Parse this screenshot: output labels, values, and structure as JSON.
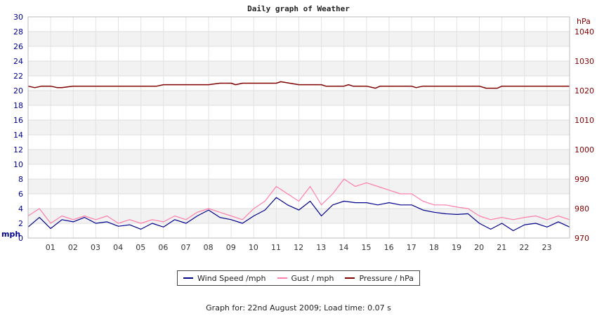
{
  "title": "Daily graph of Weather",
  "footer": "Graph for: 22nd August 2009; Load time: 0.07 s",
  "legend": [
    {
      "label": "Wind Speed /mph",
      "color": "#00008b"
    },
    {
      "label": "Gust / mph",
      "color": "#ff7fa8"
    },
    {
      "label": "Pressure / hPa",
      "color": "#800000"
    }
  ],
  "chart_data": {
    "type": "line",
    "x_label_hours": [
      "01",
      "02",
      "03",
      "04",
      "05",
      "06",
      "07",
      "08",
      "09",
      "10",
      "11",
      "12",
      "13",
      "14",
      "15",
      "16",
      "17",
      "18",
      "19",
      "20",
      "21",
      "22",
      "23"
    ],
    "xlim": [
      0,
      24
    ],
    "left_axis": {
      "unit": "mph",
      "ylim": [
        0,
        30
      ],
      "ticks": [
        0,
        2,
        4,
        6,
        8,
        10,
        12,
        14,
        16,
        18,
        20,
        22,
        24,
        26,
        28,
        30
      ],
      "color": "#00008b"
    },
    "right_axis": {
      "unit": "hPa",
      "ylim": [
        970,
        1045
      ],
      "ticks": [
        970,
        980,
        990,
        1000,
        1010,
        1020,
        1030,
        1040
      ],
      "color": "#800000"
    },
    "grid": "horizontal-bands",
    "legend_position": "bottom",
    "series": [
      {
        "name": "Wind Speed /mph",
        "axis": "left",
        "color": "#00008b",
        "x": [
          0,
          0.5,
          1,
          1.5,
          2,
          2.5,
          3,
          3.5,
          4,
          4.5,
          5,
          5.5,
          6,
          6.5,
          7,
          7.5,
          8,
          8.5,
          9,
          9.5,
          10,
          10.5,
          11,
          11.5,
          12,
          12.5,
          13,
          13.5,
          14,
          14.5,
          15,
          15.5,
          16,
          16.5,
          17,
          17.5,
          18,
          18.5,
          19,
          19.5,
          20,
          20.5,
          21,
          21.5,
          22,
          22.5,
          23,
          23.5,
          24
        ],
        "y": [
          1.5,
          2.8,
          1.3,
          2.5,
          2.2,
          2.8,
          2,
          2.2,
          1.6,
          1.8,
          1.2,
          2,
          1.5,
          2.5,
          2,
          3,
          3.8,
          2.8,
          2.5,
          2,
          3,
          3.8,
          5.5,
          4.5,
          3.8,
          5,
          3,
          4.5,
          5,
          4.8,
          4.8,
          4.5,
          4.8,
          4.5,
          4.5,
          3.8,
          3.5,
          3.3,
          3.2,
          3.3,
          2,
          1.2,
          2,
          1,
          1.8,
          2,
          1.5,
          2.2,
          1.5
        ]
      },
      {
        "name": "Gust / mph",
        "axis": "left",
        "color": "#ff7fa8",
        "x": [
          0,
          0.5,
          1,
          1.5,
          2,
          2.5,
          3,
          3.5,
          4,
          4.5,
          5,
          5.5,
          6,
          6.5,
          7,
          7.5,
          8,
          8.5,
          9,
          9.5,
          10,
          10.5,
          11,
          11.5,
          12,
          12.5,
          13,
          13.5,
          14,
          14.5,
          15,
          15.5,
          16,
          16.5,
          17,
          17.5,
          18,
          18.5,
          19,
          19.5,
          20,
          20.5,
          21,
          21.5,
          22,
          22.5,
          23,
          23.5,
          24
        ],
        "y": [
          3,
          4,
          2,
          3,
          2.5,
          3,
          2.5,
          3,
          2,
          2.5,
          2,
          2.5,
          2.2,
          3,
          2.5,
          3.5,
          4,
          3.5,
          3,
          2.5,
          4,
          5,
          7,
          6,
          5,
          7,
          4.5,
          6,
          8,
          7,
          7.5,
          7,
          6.5,
          6,
          6,
          5,
          4.5,
          4.5,
          4.2,
          4,
          3,
          2.5,
          2.8,
          2.5,
          2.8,
          3,
          2.5,
          3,
          2.5
        ]
      },
      {
        "name": "Pressure / hPa",
        "axis": "right",
        "color": "#800000",
        "x": [
          0,
          0.3,
          0.6,
          1,
          1.3,
          1.5,
          1.8,
          2,
          5,
          5.7,
          6,
          8,
          8.5,
          9,
          9.2,
          9.5,
          10,
          11,
          11.2,
          11.6,
          12,
          13,
          13.2,
          14,
          14.2,
          14.4,
          15,
          15.4,
          15.6,
          16,
          17,
          17.2,
          17.5,
          18,
          20,
          20.3,
          20.8,
          21,
          22,
          24
        ],
        "y": [
          1021.5,
          1021,
          1021.5,
          1021.5,
          1021,
          1021,
          1021.3,
          1021.5,
          1021.5,
          1021.5,
          1022,
          1022,
          1022.5,
          1022.5,
          1022,
          1022.5,
          1022.5,
          1022.5,
          1023,
          1022.5,
          1022,
          1022,
          1021.5,
          1021.5,
          1022,
          1021.5,
          1021.5,
          1020.8,
          1021.5,
          1021.5,
          1021.5,
          1021,
          1021.5,
          1021.5,
          1021.5,
          1020.8,
          1020.8,
          1021.5,
          1021.5,
          1021.5
        ]
      }
    ]
  }
}
